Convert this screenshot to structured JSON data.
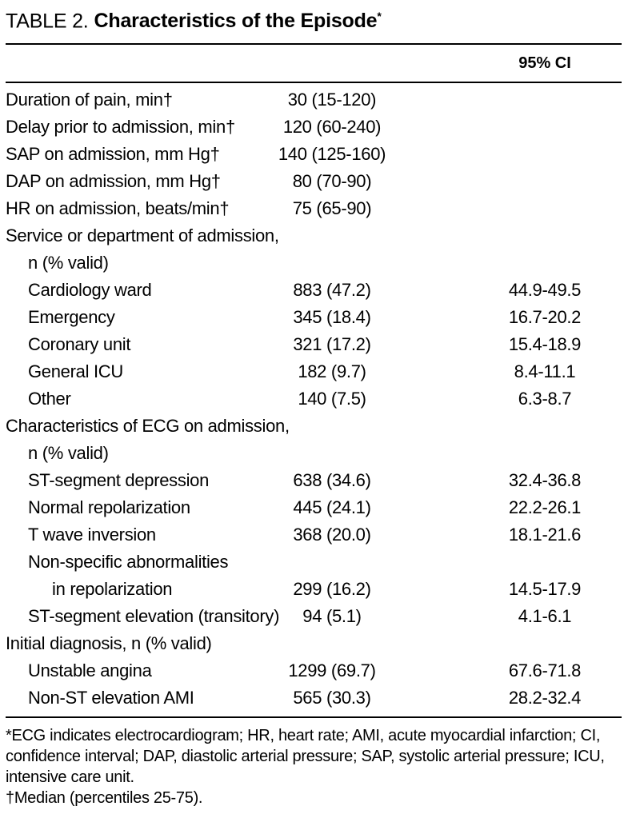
{
  "table": {
    "title_label": "TABLE 2.",
    "title": "Characteristics of the Episode",
    "title_marker": "*",
    "ci_header": "95% CI",
    "rows": [
      {
        "label": "Duration of pain, min†",
        "indent": 0,
        "value": "30 (15-120)",
        "ci": ""
      },
      {
        "label": "Delay prior to admission, min†",
        "indent": 0,
        "value": "120 (60-240)",
        "ci": ""
      },
      {
        "label": "SAP on admission, mm Hg†",
        "indent": 0,
        "value": "140 (125-160)",
        "ci": ""
      },
      {
        "label": "DAP on admission, mm Hg†",
        "indent": 0,
        "value": "80 (70-90)",
        "ci": ""
      },
      {
        "label": "HR on admission, beats/min†",
        "indent": 0,
        "value": "75 (65-90)",
        "ci": ""
      },
      {
        "label": "Service or department of admission,",
        "indent": 0,
        "value": "",
        "ci": ""
      },
      {
        "label": "n (% valid)",
        "indent": 1,
        "value": "",
        "ci": ""
      },
      {
        "label": "Cardiology ward",
        "indent": 1,
        "value": "883 (47.2)",
        "ci": "44.9-49.5"
      },
      {
        "label": "Emergency",
        "indent": 1,
        "value": "345 (18.4)",
        "ci": "16.7-20.2"
      },
      {
        "label": "Coronary unit",
        "indent": 1,
        "value": "321 (17.2)",
        "ci": "15.4-18.9"
      },
      {
        "label": "General ICU",
        "indent": 1,
        "value": "182 (9.7)",
        "ci": "8.4-11.1"
      },
      {
        "label": "Other",
        "indent": 1,
        "value": "140 (7.5)",
        "ci": "6.3-8.7"
      },
      {
        "label": "Characteristics of ECG on admission,",
        "indent": 0,
        "value": "",
        "ci": ""
      },
      {
        "label": "n (% valid)",
        "indent": 1,
        "value": "",
        "ci": ""
      },
      {
        "label": "ST-segment depression",
        "indent": 1,
        "value": "638 (34.6)",
        "ci": "32.4-36.8"
      },
      {
        "label": "Normal repolarization",
        "indent": 1,
        "value": "445 (24.1)",
        "ci": "22.2-26.1"
      },
      {
        "label": "T wave inversion",
        "indent": 1,
        "value": "368 (20.0)",
        "ci": "18.1-21.6"
      },
      {
        "label": "Non-specific abnormalities",
        "indent": 1,
        "value": "",
        "ci": ""
      },
      {
        "label": "in repolarization",
        "indent": 2,
        "value": "299 (16.2)",
        "ci": "14.5-17.9"
      },
      {
        "label": "ST-segment elevation (transitory)",
        "indent": 1,
        "value": "94 (5.1)",
        "ci": "4.1-6.1"
      },
      {
        "label": "Initial diagnosis, n (% valid)",
        "indent": 0,
        "value": "",
        "ci": ""
      },
      {
        "label": "Unstable angina",
        "indent": 1,
        "value": "1299 (69.7)",
        "ci": "67.6-71.8"
      },
      {
        "label": "Non-ST elevation AMI",
        "indent": 1,
        "value": "565 (30.3)",
        "ci": "28.2-32.4"
      }
    ],
    "footnotes": [
      "*ECG indicates electrocardiogram; HR, heart rate; AMI, acute myocardial infarction; CI, confidence interval; DAP, diastolic arterial pressure; SAP, systolic arterial pressure; ICU, intensive care unit.",
      "†Median (percentiles 25-75)."
    ]
  }
}
